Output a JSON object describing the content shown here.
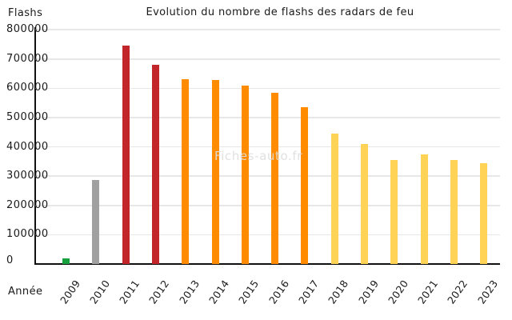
{
  "chart_data": {
    "type": "bar",
    "title": "Evolution du nombre de flashs des radars de feu",
    "ylabel": "Flashs",
    "xlabel": "Année",
    "categories": [
      "2009",
      "2010",
      "2011",
      "2012",
      "2013",
      "2014",
      "2015",
      "2016",
      "2017",
      "2018",
      "2019",
      "2020",
      "2021",
      "2022",
      "2023"
    ],
    "values": [
      20000,
      287000,
      745000,
      680000,
      630000,
      628000,
      610000,
      586000,
      535000,
      445000,
      411000,
      356000,
      373000,
      355000,
      344000
    ],
    "bar_colors": [
      "#17a03e",
      "#a0a0a0",
      "#c2262a",
      "#c2262a",
      "#ff8c00",
      "#ff8c00",
      "#ff8c00",
      "#ff8c00",
      "#ff8c00",
      "#ffd355",
      "#ffd355",
      "#ffd355",
      "#ffd355",
      "#ffd355",
      "#ffd355"
    ],
    "color_meaning": {
      "green": "#17a03e",
      "gray": "#a0a0a0",
      "red": "#c2262a",
      "orange": "#ff8c00",
      "yellow": "#ffd355"
    },
    "ylim": [
      0,
      800000
    ],
    "yticks": [
      0,
      100000,
      200000,
      300000,
      400000,
      500000,
      600000,
      700000,
      800000
    ],
    "grid": "horizontal",
    "legend": "none",
    "watermark": "Fiches-auto.fr"
  }
}
